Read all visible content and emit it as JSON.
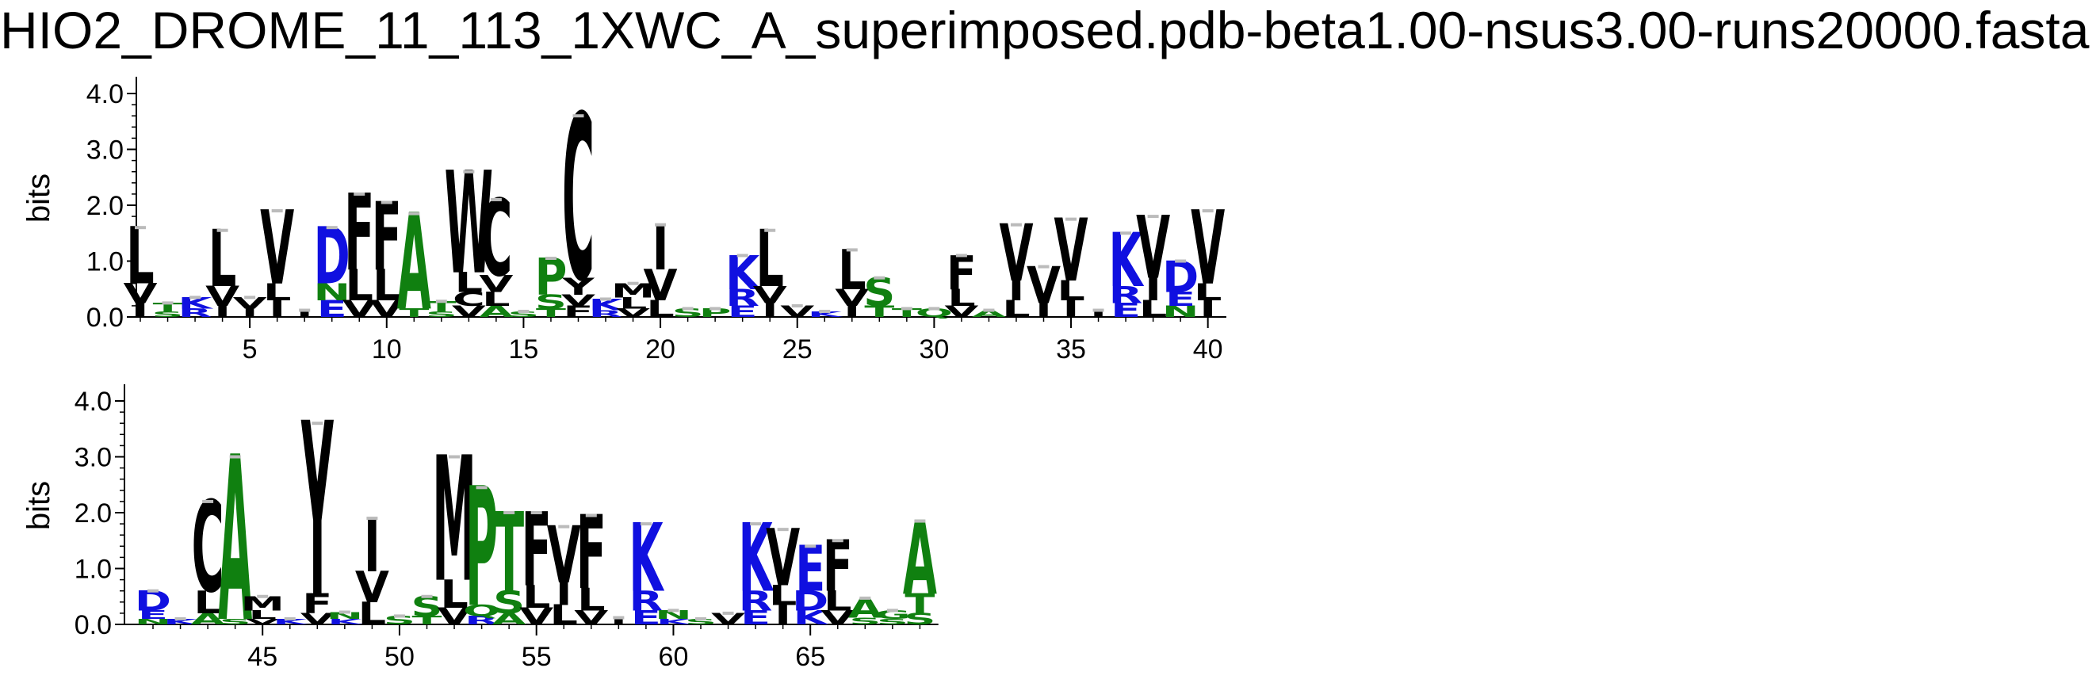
{
  "title": "HIO2_DROME_11_113_1XWC_A_superimposed.pdb-beta1.00-nsus3.00-runs20000.fasta",
  "colors": {
    "hydrophobic": "#000000",
    "polar": "#108010",
    "charged": "#1010e0",
    "error_bar": "#bbbbbb"
  },
  "chart_data": {
    "type": "sequence-logo",
    "ylabel": "bits",
    "ylim": [
      0,
      4.3
    ],
    "yticks": [
      "0.0",
      "1.0",
      "2.0",
      "3.0",
      "4.0"
    ],
    "rows": [
      {
        "start": 1,
        "xticks": [
          "5",
          "10",
          "15",
          "20",
          "25",
          "30",
          "35",
          "40"
        ],
        "positions": [
          {
            "pos": 1,
            "letters": [
              [
                "L",
                1.0
              ],
              [
                "V",
                0.35
              ],
              [
                "I",
                0.25
              ]
            ]
          },
          {
            "pos": 2,
            "letters": [
              [
                "T",
                0.15
              ],
              [
                "S",
                0.1
              ]
            ]
          },
          {
            "pos": 3,
            "letters": [
              [
                "K",
                0.2
              ],
              [
                "R",
                0.15
              ]
            ]
          },
          {
            "pos": 4,
            "letters": [
              [
                "L",
                1.0
              ],
              [
                "V",
                0.35
              ],
              [
                "I",
                0.2
              ]
            ]
          },
          {
            "pos": 5,
            "letters": [
              [
                "V",
                0.2
              ],
              [
                "I",
                0.15
              ]
            ]
          },
          {
            "pos": 6,
            "letters": [
              [
                "V",
                1.3
              ],
              [
                "I",
                0.3
              ],
              [
                "L",
                0.3
              ]
            ]
          },
          {
            "pos": 7,
            "letters": [
              [
                "I",
                0.12
              ]
            ]
          },
          {
            "pos": 8,
            "letters": [
              [
                "D",
                1.0
              ],
              [
                "E",
                0.3
              ],
              [
                "N",
                0.3
              ]
            ]
          },
          {
            "pos": 9,
            "letters": [
              [
                "F",
                1.35
              ],
              [
                "L",
                0.55
              ],
              [
                "V",
                0.3
              ]
            ]
          },
          {
            "pos": 10,
            "letters": [
              [
                "F",
                1.2
              ],
              [
                "L",
                0.55
              ],
              [
                "V",
                0.3
              ]
            ]
          },
          {
            "pos": 11,
            "letters": [
              [
                "A",
                1.7
              ],
              [
                "T",
                0.15
              ]
            ]
          },
          {
            "pos": 12,
            "letters": [
              [
                "T",
                0.18
              ],
              [
                "S",
                0.1
              ]
            ]
          },
          {
            "pos": 13,
            "letters": [
              [
                "W",
                1.8
              ],
              [
                "L",
                0.35
              ],
              [
                "C",
                0.25
              ],
              [
                "V",
                0.2
              ]
            ]
          },
          {
            "pos": 14,
            "letters": [
              [
                "C",
                1.35
              ],
              [
                "V",
                0.3
              ],
              [
                "L",
                0.25
              ],
              [
                "A",
                0.2
              ]
            ]
          },
          {
            "pos": 15,
            "letters": [
              [
                "S",
                0.1
              ]
            ]
          },
          {
            "pos": 16,
            "letters": [
              [
                "P",
                0.65
              ],
              [
                "S",
                0.25
              ],
              [
                "T",
                0.15
              ]
            ]
          },
          {
            "pos": 17,
            "letters": [
              [
                "C",
                2.9
              ],
              [
                "Y",
                0.3
              ],
              [
                "F",
                0.2
              ],
              [
                "V",
                0.2
              ]
            ]
          },
          {
            "pos": 18,
            "letters": [
              [
                "K",
                0.2
              ],
              [
                "R",
                0.12
              ]
            ]
          },
          {
            "pos": 19,
            "letters": [
              [
                "M",
                0.25
              ],
              [
                "L",
                0.2
              ],
              [
                "V",
                0.15
              ]
            ]
          },
          {
            "pos": 20,
            "letters": [
              [
                "I",
                0.8
              ],
              [
                "V",
                0.55
              ],
              [
                "L",
                0.3
              ]
            ]
          },
          {
            "pos": 21,
            "letters": [
              [
                "S",
                0.15
              ]
            ]
          },
          {
            "pos": 22,
            "letters": [
              [
                "P",
                0.15
              ]
            ]
          },
          {
            "pos": 23,
            "letters": [
              [
                "K",
                0.6
              ],
              [
                "R",
                0.3
              ],
              [
                "E",
                0.2
              ]
            ]
          },
          {
            "pos": 24,
            "letters": [
              [
                "L",
                1.0
              ],
              [
                "V",
                0.3
              ],
              [
                "I",
                0.25
              ]
            ]
          },
          {
            "pos": 25,
            "letters": [
              [
                "V",
                0.2
              ]
            ]
          },
          {
            "pos": 26,
            "letters": [
              [
                "K",
                0.1
              ]
            ]
          },
          {
            "pos": 27,
            "letters": [
              [
                "L",
                0.7
              ],
              [
                "V",
                0.3
              ],
              [
                "I",
                0.2
              ]
            ]
          },
          {
            "pos": 28,
            "letters": [
              [
                "S",
                0.5
              ],
              [
                "T",
                0.2
              ]
            ]
          },
          {
            "pos": 29,
            "letters": [
              [
                "T",
                0.15
              ]
            ]
          },
          {
            "pos": 30,
            "letters": [
              [
                "Q",
                0.15
              ]
            ]
          },
          {
            "pos": 31,
            "letters": [
              [
                "F",
                0.6
              ],
              [
                "L",
                0.3
              ],
              [
                "V",
                0.2
              ]
            ]
          },
          {
            "pos": 32,
            "letters": [
              [
                "A",
                0.12
              ]
            ]
          },
          {
            "pos": 33,
            "letters": [
              [
                "V",
                1.0
              ],
              [
                "I",
                0.35
              ],
              [
                "L",
                0.3
              ]
            ]
          },
          {
            "pos": 34,
            "letters": [
              [
                "V",
                0.65
              ],
              [
                "I",
                0.25
              ]
            ]
          },
          {
            "pos": 35,
            "letters": [
              [
                "V",
                1.1
              ],
              [
                "I",
                0.3
              ],
              [
                "L",
                0.35
              ]
            ]
          },
          {
            "pos": 36,
            "letters": [
              [
                "I",
                0.12
              ]
            ]
          },
          {
            "pos": 37,
            "letters": [
              [
                "K",
                0.95
              ],
              [
                "R",
                0.3
              ],
              [
                "E",
                0.25
              ]
            ]
          },
          {
            "pos": 38,
            "letters": [
              [
                "V",
                1.1
              ],
              [
                "I",
                0.4
              ],
              [
                "L",
                0.3
              ]
            ]
          },
          {
            "pos": 39,
            "letters": [
              [
                "D",
                0.55
              ],
              [
                "E",
                0.25
              ],
              [
                "N",
                0.2
              ]
            ]
          },
          {
            "pos": 40,
            "letters": [
              [
                "V",
                1.3
              ],
              [
                "I",
                0.3
              ],
              [
                "L",
                0.3
              ]
            ]
          }
        ]
      },
      {
        "start": 41,
        "xticks": [
          "45",
          "50",
          "55",
          "60",
          "65"
        ],
        "positions": [
          {
            "pos": 41,
            "letters": [
              [
                "D",
                0.35
              ],
              [
                "E",
                0.15
              ],
              [
                "N",
                0.1
              ]
            ]
          },
          {
            "pos": 42,
            "letters": [
              [
                "K",
                0.1
              ]
            ]
          },
          {
            "pos": 43,
            "letters": [
              [
                "C",
                1.6
              ],
              [
                "L",
                0.4
              ],
              [
                "A",
                0.2
              ]
            ]
          },
          {
            "pos": 44,
            "letters": [
              [
                "A",
                2.9
              ],
              [
                "S",
                0.1
              ]
            ]
          },
          {
            "pos": 45,
            "letters": [
              [
                "M",
                0.25
              ],
              [
                "L",
                0.15
              ],
              [
                "V",
                0.1
              ]
            ]
          },
          {
            "pos": 46,
            "letters": [
              [
                "K",
                0.1
              ]
            ]
          },
          {
            "pos": 47,
            "letters": [
              [
                "Y",
                3.05
              ],
              [
                "F",
                0.35
              ],
              [
                "V",
                0.2
              ]
            ]
          },
          {
            "pos": 48,
            "letters": [
              [
                "N",
                0.12
              ],
              [
                "K",
                0.1
              ]
            ]
          },
          {
            "pos": 49,
            "letters": [
              [
                "I",
                0.95
              ],
              [
                "V",
                0.55
              ],
              [
                "L",
                0.4
              ]
            ]
          },
          {
            "pos": 50,
            "letters": [
              [
                "S",
                0.15
              ]
            ]
          },
          {
            "pos": 51,
            "letters": [
              [
                "S",
                0.35
              ],
              [
                "T",
                0.15
              ]
            ]
          },
          {
            "pos": 52,
            "letters": [
              [
                "M",
                2.2
              ],
              [
                "L",
                0.5
              ],
              [
                "V",
                0.3
              ]
            ]
          },
          {
            "pos": 53,
            "letters": [
              [
                "P",
                2.1
              ],
              [
                "Q",
                0.2
              ],
              [
                "R",
                0.15
              ]
            ]
          },
          {
            "pos": 54,
            "letters": [
              [
                "T",
                1.4
              ],
              [
                "S",
                0.4
              ],
              [
                "A",
                0.2
              ]
            ]
          },
          {
            "pos": 55,
            "letters": [
              [
                "F",
                1.3
              ],
              [
                "L",
                0.4
              ],
              [
                "V",
                0.3
              ]
            ]
          },
          {
            "pos": 56,
            "letters": [
              [
                "V",
                1.0
              ],
              [
                "I",
                0.4
              ],
              [
                "L",
                0.35
              ]
            ]
          },
          {
            "pos": 57,
            "letters": [
              [
                "F",
                1.3
              ],
              [
                "L",
                0.4
              ],
              [
                "V",
                0.25
              ]
            ]
          },
          {
            "pos": 58,
            "letters": [
              [
                "I",
                0.12
              ]
            ]
          },
          {
            "pos": 59,
            "letters": [
              [
                "K",
                1.2
              ],
              [
                "R",
                0.35
              ],
              [
                "E",
                0.25
              ]
            ]
          },
          {
            "pos": 60,
            "letters": [
              [
                "N",
                0.15
              ],
              [
                "K",
                0.1
              ]
            ]
          },
          {
            "pos": 61,
            "letters": [
              [
                "S",
                0.1
              ]
            ]
          },
          {
            "pos": 62,
            "letters": [
              [
                "V",
                0.2
              ]
            ]
          },
          {
            "pos": 63,
            "letters": [
              [
                "K",
                1.2
              ],
              [
                "R",
                0.35
              ],
              [
                "E",
                0.25
              ]
            ]
          },
          {
            "pos": 64,
            "letters": [
              [
                "V",
                1.0
              ],
              [
                "I",
                0.35
              ],
              [
                "L",
                0.35
              ]
            ]
          },
          {
            "pos": 65,
            "letters": [
              [
                "E",
                0.8
              ],
              [
                "D",
                0.35
              ],
              [
                "K",
                0.25
              ]
            ]
          },
          {
            "pos": 66,
            "letters": [
              [
                "F",
                0.9
              ],
              [
                "L",
                0.35
              ],
              [
                "V",
                0.25
              ]
            ]
          },
          {
            "pos": 67,
            "letters": [
              [
                "A",
                0.35
              ],
              [
                "S",
                0.12
              ]
            ]
          },
          {
            "pos": 68,
            "letters": [
              [
                "G",
                0.15
              ],
              [
                "S",
                0.1
              ]
            ]
          },
          {
            "pos": 69,
            "letters": [
              [
                "A",
                1.3
              ],
              [
                "T",
                0.35
              ],
              [
                "S",
                0.2
              ]
            ]
          }
        ]
      }
    ]
  }
}
